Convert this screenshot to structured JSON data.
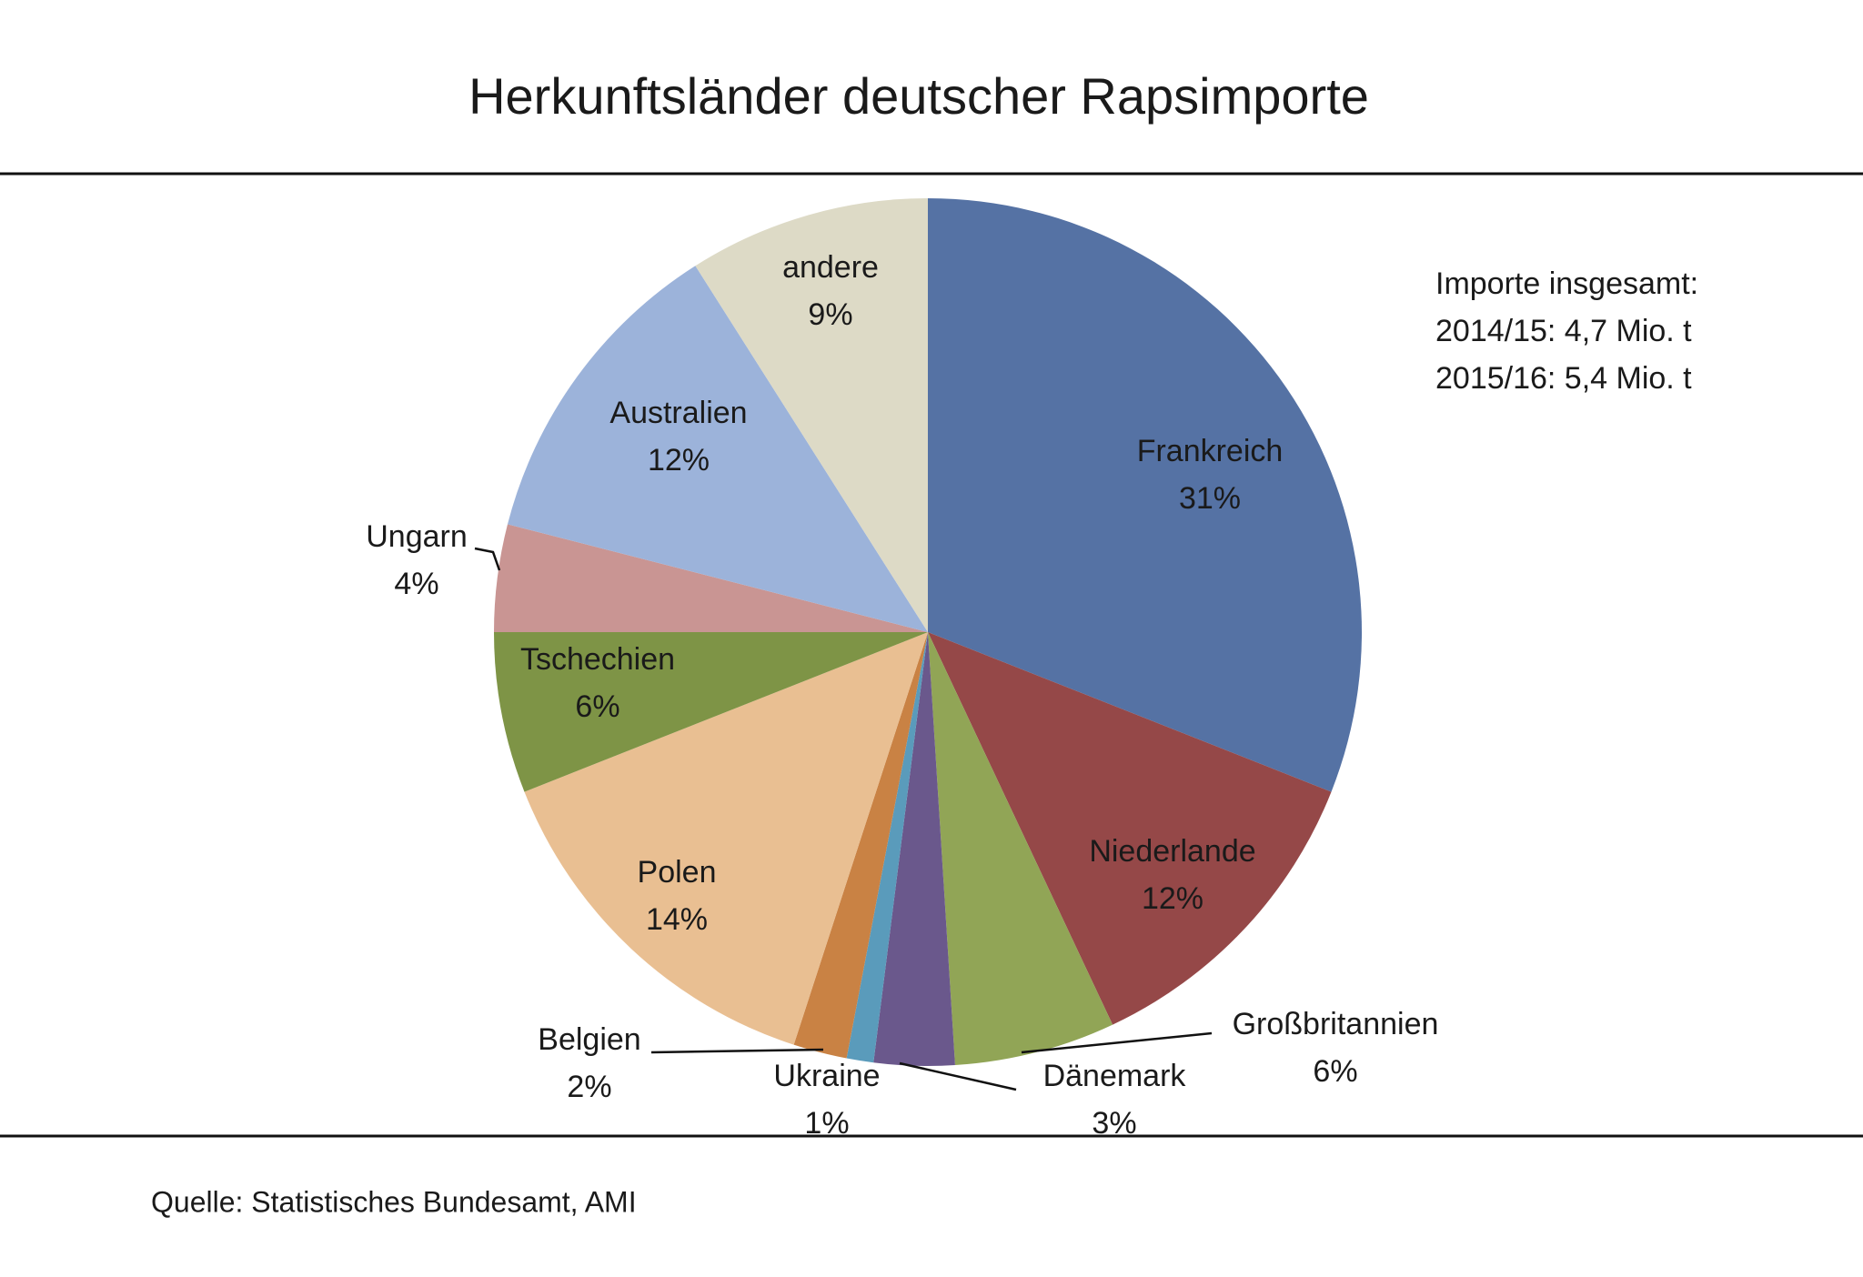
{
  "chart_data": {
    "type": "pie",
    "title": "Herkunftsländer deutscher Rapsimporte",
    "categories": [
      "Frankreich",
      "Niederlande",
      "Großbritannien",
      "Dänemark",
      "Ukraine",
      "Belgien",
      "Polen",
      "Tschechien",
      "Ungarn",
      "Australien",
      "andere"
    ],
    "values": [
      31,
      12,
      6,
      3,
      1,
      2,
      14,
      6,
      4,
      12,
      9
    ],
    "value_labels": [
      "31%",
      "12%",
      "6%",
      "3%",
      "1%",
      "2%",
      "14%",
      "6%",
      "4%",
      "12%",
      "9%"
    ],
    "colors": [
      "#5572a4",
      "#954848",
      "#91a556",
      "#6a588c",
      "#5a9bbb",
      "#c98244",
      "#e9bf92",
      "#7e9446",
      "#c99593",
      "#9cb3da",
      "#dddac6"
    ],
    "annotations": [
      "Importe insgesamt:",
      "2014/15:  4,7 Mio. t",
      "2015/16:  5,4 Mio. t"
    ],
    "source": "Quelle: Statistisches Bundesamt, AMI"
  }
}
